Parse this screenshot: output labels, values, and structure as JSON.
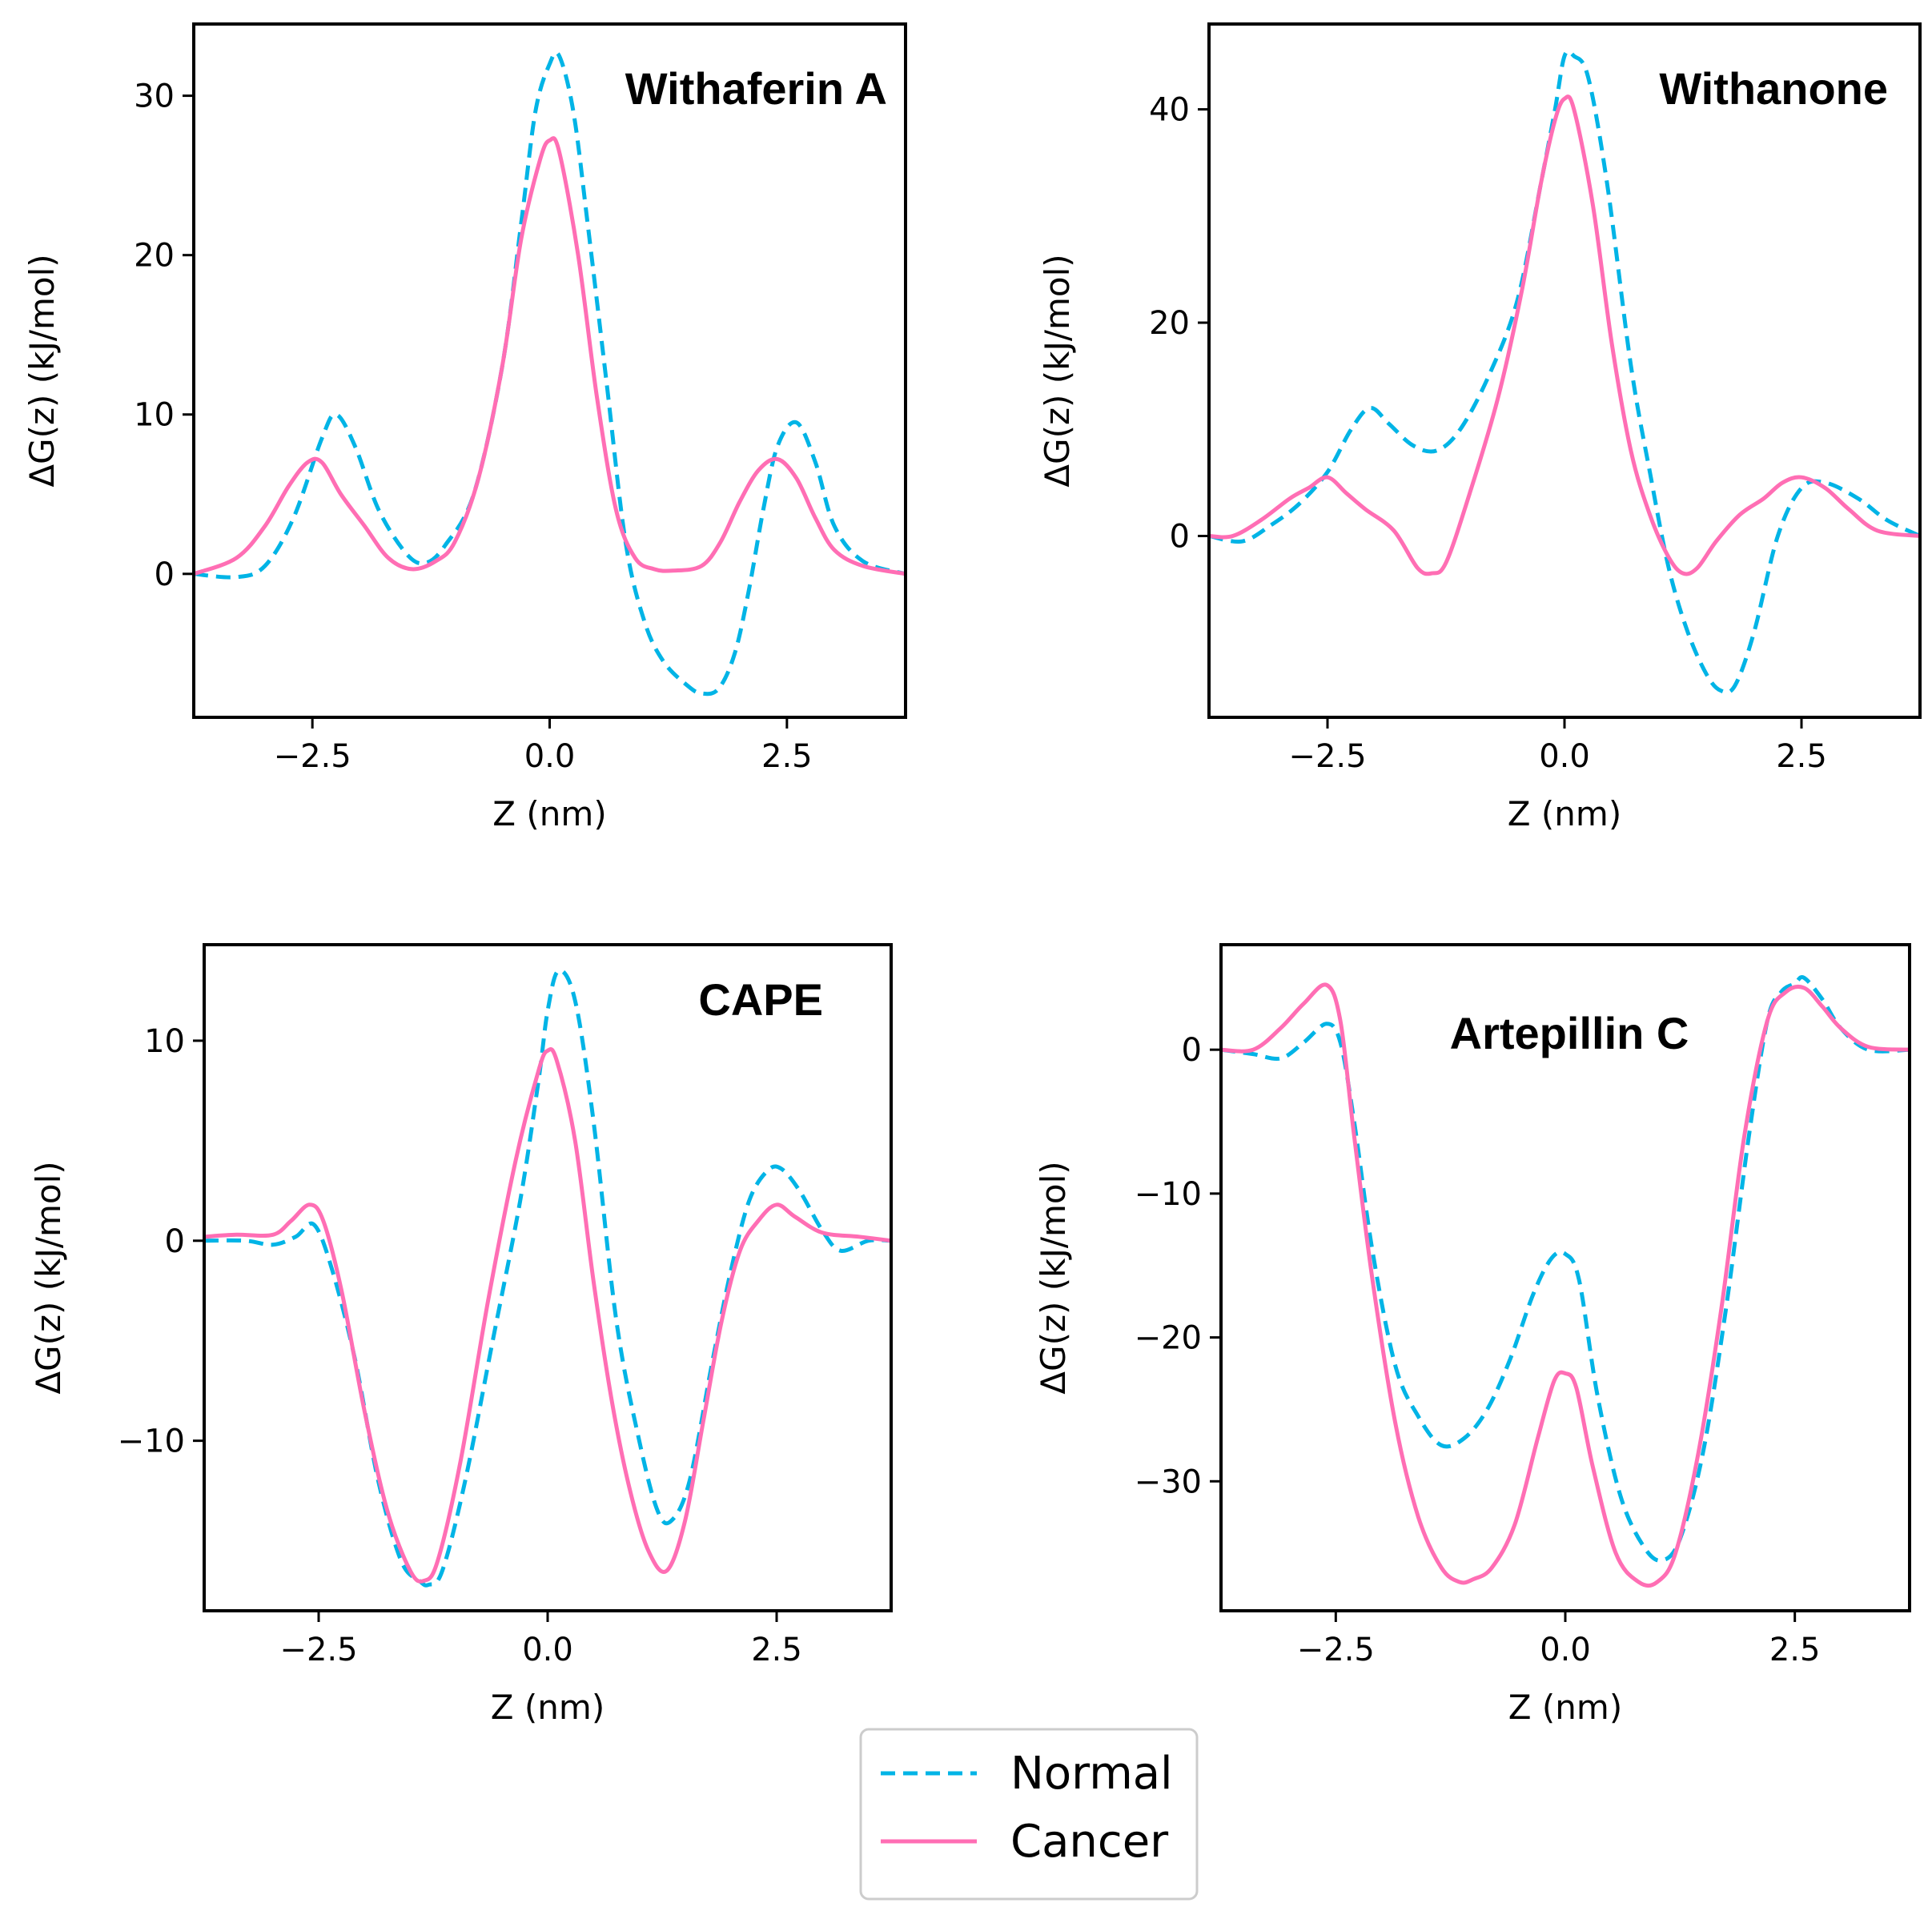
{
  "legend": {
    "entries": [
      {
        "label": "Normal",
        "color": "#00b4e6",
        "style": "dashed"
      },
      {
        "label": "Cancer",
        "color": "#ff6eb4",
        "style": "solid"
      }
    ]
  },
  "chart_data": [
    {
      "type": "line",
      "title": "Withaferin A",
      "xlabel": "Z (nm)",
      "ylabel": "ΔG(z) (kJ/mol)",
      "xlim": [
        -3.75,
        3.75
      ],
      "ylim": [
        -9,
        34.5
      ],
      "xticks": [
        -2.5,
        0.0,
        2.5
      ],
      "xtick_labels": [
        "−2.5",
        "0.0",
        "2.5"
      ],
      "yticks": [
        0,
        10,
        20,
        30
      ],
      "ytick_labels": [
        "0",
        "10",
        "20",
        "30"
      ],
      "series": [
        {
          "name": "Normal",
          "x": [
            -3.75,
            -3.3,
            -3.0,
            -2.7,
            -2.4,
            -2.25,
            -2.05,
            -1.8,
            -1.5,
            -1.3,
            -1.1,
            -0.8,
            -0.5,
            -0.3,
            -0.15,
            0.0,
            0.1,
            0.25,
            0.4,
            0.6,
            0.8,
            1.0,
            1.2,
            1.45,
            1.6,
            1.78,
            1.95,
            2.1,
            2.25,
            2.4,
            2.6,
            2.8,
            3.0,
            3.3,
            3.75
          ],
          "y": [
            0,
            -0.2,
            0.5,
            3.5,
            8.5,
            10,
            8,
            4,
            1.2,
            0.7,
            1.8,
            5,
            13,
            22,
            29,
            32,
            32.5,
            29,
            22,
            12,
            2,
            -3,
            -5.5,
            -7,
            -7.5,
            -7.2,
            -5,
            -1,
            4,
            8,
            9.5,
            7,
            3,
            0.8,
            0
          ]
        },
        {
          "name": "Cancer",
          "x": [
            -3.75,
            -3.3,
            -3.0,
            -2.75,
            -2.55,
            -2.4,
            -2.2,
            -1.95,
            -1.7,
            -1.45,
            -1.2,
            -1.0,
            -0.75,
            -0.5,
            -0.3,
            -0.1,
            0.0,
            0.1,
            0.3,
            0.5,
            0.7,
            0.9,
            1.1,
            1.3,
            1.6,
            1.8,
            2.0,
            2.2,
            2.4,
            2.6,
            2.8,
            3.0,
            3.3,
            3.75
          ],
          "y": [
            0,
            1,
            3,
            5.5,
            7,
            7,
            5,
            3,
            1,
            0.3,
            0.8,
            2,
            6,
            13,
            21,
            26,
            27.2,
            26.5,
            20,
            11,
            4,
            1,
            0.3,
            0.2,
            0.5,
            2,
            4.5,
            6.5,
            7.2,
            6,
            3.5,
            1.5,
            0.5,
            0
          ]
        }
      ]
    },
    {
      "type": "line",
      "title": "Withanone",
      "xlabel": "Z (nm)",
      "ylabel": "ΔG(z) (kJ/mol)",
      "xlim": [
        -3.75,
        3.75
      ],
      "ylim": [
        -17,
        48
      ],
      "xticks": [
        -2.5,
        0.0,
        2.5
      ],
      "xtick_labels": [
        "−2.5",
        "0.0",
        "2.5"
      ],
      "yticks": [
        0,
        20,
        40
      ],
      "ytick_labels": [
        "0",
        "20",
        "40"
      ],
      "series": [
        {
          "name": "Normal",
          "x": [
            -3.75,
            -3.4,
            -3.1,
            -2.8,
            -2.5,
            -2.25,
            -2.05,
            -1.85,
            -1.6,
            -1.35,
            -1.1,
            -0.8,
            -0.5,
            -0.25,
            -0.1,
            0.0,
            0.1,
            0.25,
            0.45,
            0.7,
            0.9,
            1.1,
            1.3,
            1.5,
            1.65,
            1.8,
            2.0,
            2.25,
            2.5,
            2.75,
            3.1,
            3.4,
            3.75
          ],
          "y": [
            0,
            -0.5,
            1,
            3,
            6,
            10,
            12,
            10.5,
            8.5,
            8,
            10,
            15,
            22,
            33,
            40,
            45,
            45,
            43,
            33,
            16,
            6,
            -3,
            -9,
            -13,
            -14.5,
            -14,
            -9,
            0,
            4.5,
            5,
            3.5,
            1.5,
            0
          ]
        },
        {
          "name": "Cancer",
          "x": [
            -3.75,
            -3.5,
            -3.2,
            -2.9,
            -2.7,
            -2.5,
            -2.3,
            -2.1,
            -1.8,
            -1.55,
            -1.4,
            -1.25,
            -1.0,
            -0.7,
            -0.45,
            -0.25,
            -0.1,
            0.0,
            0.1,
            0.3,
            0.5,
            0.7,
            0.9,
            1.1,
            1.25,
            1.4,
            1.6,
            1.85,
            2.1,
            2.3,
            2.5,
            2.75,
            3.0,
            3.3,
            3.75
          ],
          "y": [
            0,
            0,
            1.5,
            3.5,
            4.5,
            5.5,
            4,
            2.5,
            0.5,
            -3,
            -3.5,
            -2.5,
            4,
            13,
            23,
            33,
            39,
            41,
            40,
            31,
            18,
            8,
            2,
            -2,
            -3.5,
            -3,
            -0.5,
            2,
            3.5,
            5,
            5.5,
            4.5,
            2.5,
            0.5,
            0
          ]
        }
      ]
    },
    {
      "type": "line",
      "title": "CAPE",
      "xlabel": "Z (nm)",
      "ylabel": "ΔG(z) (kJ/mol)",
      "xlim": [
        -3.75,
        3.75
      ],
      "ylim": [
        -18.5,
        14.8
      ],
      "xticks": [
        -2.5,
        0.0,
        2.5
      ],
      "xtick_labels": [
        "−2.5",
        "0.0",
        "2.5"
      ],
      "yticks": [
        -10,
        0,
        10
      ],
      "ytick_labels": [
        "−10",
        "0",
        "10"
      ],
      "series": [
        {
          "name": "Normal",
          "x": [
            -3.75,
            -3.3,
            -3.0,
            -2.75,
            -2.55,
            -2.35,
            -2.1,
            -1.85,
            -1.6,
            -1.4,
            -1.3,
            -1.15,
            -0.9,
            -0.6,
            -0.3,
            -0.1,
            0.0,
            0.12,
            0.3,
            0.5,
            0.75,
            1.0,
            1.2,
            1.35,
            1.55,
            1.8,
            2.0,
            2.2,
            2.4,
            2.55,
            2.75,
            3.0,
            3.2,
            3.5,
            3.75
          ],
          "y": [
            0,
            0,
            -0.2,
            0.2,
            0.8,
            -1.5,
            -6,
            -12,
            -16,
            -17,
            -17.2,
            -16.5,
            -12,
            -5,
            2,
            8,
            11.5,
            13.5,
            12,
            6,
            -4,
            -10,
            -13.5,
            -14,
            -12,
            -6,
            -1.5,
            2,
            3.5,
            3.6,
            2.5,
            0.5,
            -0.5,
            0,
            0
          ]
        },
        {
          "name": "Cancer",
          "x": [
            -3.75,
            -3.4,
            -3.0,
            -2.8,
            -2.6,
            -2.45,
            -2.25,
            -2.0,
            -1.75,
            -1.5,
            -1.35,
            -1.2,
            -0.95,
            -0.65,
            -0.35,
            -0.1,
            0.0,
            0.1,
            0.3,
            0.5,
            0.7,
            0.9,
            1.1,
            1.3,
            1.5,
            1.7,
            1.9,
            2.1,
            2.3,
            2.5,
            2.7,
            3.0,
            3.4,
            3.75
          ],
          "y": [
            0.2,
            0.3,
            0.3,
            1,
            1.8,
            1,
            -2.5,
            -8.5,
            -13.5,
            -16.5,
            -17,
            -16,
            -11,
            -3,
            4,
            8.5,
            9.5,
            9,
            5,
            -2,
            -8,
            -12.5,
            -15.5,
            -16.5,
            -14,
            -9,
            -4,
            -0.5,
            1,
            1.8,
            1.2,
            0.4,
            0.2,
            0
          ]
        }
      ]
    },
    {
      "type": "line",
      "title": "Artepillin C",
      "xlabel": "Z (nm)",
      "ylabel": "ΔG(z) (kJ/mol)",
      "xlim": [
        -3.75,
        3.75
      ],
      "ylim": [
        -39,
        7.3
      ],
      "xticks": [
        -2.5,
        0.0,
        2.5
      ],
      "xtick_labels": [
        "−2.5",
        "0.0",
        "2.5"
      ],
      "yticks": [
        -30,
        -20,
        -10,
        0
      ],
      "ytick_labels": [
        "−30",
        "−20",
        "−10",
        "0"
      ],
      "series": [
        {
          "name": "Normal",
          "x": [
            -3.75,
            -3.4,
            -3.1,
            -2.85,
            -2.6,
            -2.45,
            -2.3,
            -2.1,
            -1.85,
            -1.6,
            -1.35,
            -1.1,
            -0.85,
            -0.6,
            -0.35,
            -0.15,
            0.0,
            0.15,
            0.35,
            0.6,
            0.85,
            1.05,
            1.25,
            1.5,
            1.75,
            2.0,
            2.2,
            2.35,
            2.5,
            2.6,
            2.8,
            3.0,
            3.3,
            3.75
          ],
          "y": [
            0,
            -0.3,
            -0.6,
            0.5,
            1.8,
            0.5,
            -5,
            -14,
            -22,
            -25.5,
            -27.5,
            -27,
            -25,
            -21.5,
            -17,
            -14.5,
            -14.2,
            -16,
            -24,
            -31,
            -34.5,
            -35.5,
            -34,
            -28,
            -18,
            -6,
            2,
            4,
            4.6,
            5,
            3.5,
            1.5,
            0,
            0
          ]
        },
        {
          "name": "Cancer",
          "x": [
            -3.75,
            -3.4,
            -3.1,
            -2.85,
            -2.6,
            -2.45,
            -2.3,
            -2.1,
            -1.85,
            -1.6,
            -1.35,
            -1.15,
            -1.0,
            -0.8,
            -0.55,
            -0.3,
            -0.12,
            0.0,
            0.12,
            0.3,
            0.55,
            0.8,
            1.0,
            1.2,
            1.45,
            1.7,
            1.95,
            2.2,
            2.4,
            2.6,
            2.8,
            3.0,
            3.3,
            3.75
          ],
          "y": [
            0,
            0,
            1.5,
            3.2,
            4.5,
            2,
            -6,
            -16,
            -26,
            -32.5,
            -36,
            -37,
            -36.8,
            -36,
            -33,
            -27,
            -23,
            -22.5,
            -23.5,
            -29,
            -35,
            -37,
            -37,
            -35,
            -28,
            -18,
            -6,
            2,
            4,
            4.3,
            3,
            1.5,
            0.2,
            0
          ]
        }
      ]
    }
  ]
}
